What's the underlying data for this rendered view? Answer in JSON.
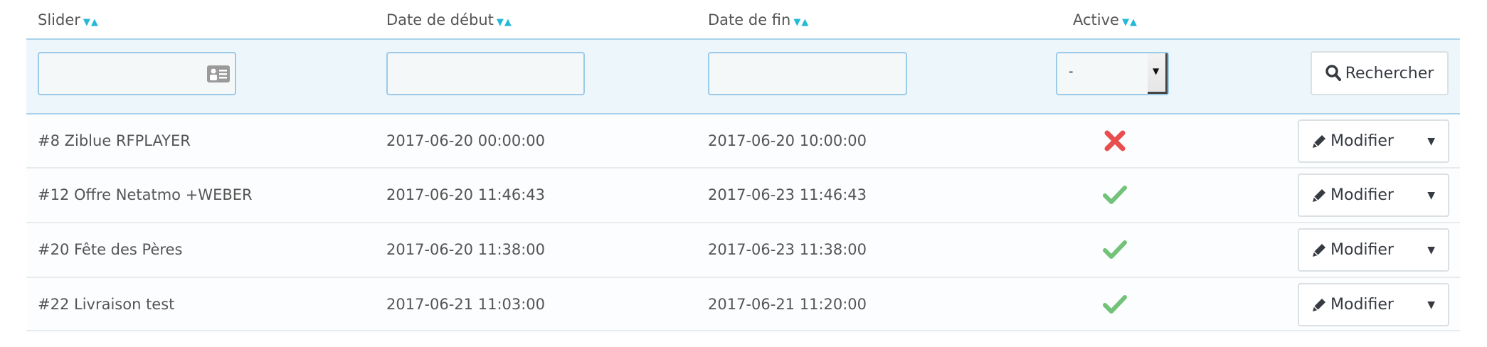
{
  "columns": [
    {
      "label": "Slider"
    },
    {
      "label": "Date de début"
    },
    {
      "label": "Date de fin"
    },
    {
      "label": "Active"
    }
  ],
  "sort_icons": {
    "desc": "▼",
    "asc": "▲"
  },
  "filters": {
    "slider": "",
    "date_debut": "",
    "date_fin": "",
    "active_selected": "-",
    "search_label": "Rechercher"
  },
  "rows": [
    {
      "slider": "#8 Ziblue RFPLAYER",
      "start": "2017-06-20 00:00:00",
      "end": "2017-06-20 10:00:00",
      "active": false,
      "action": "Modifier"
    },
    {
      "slider": "#12 Offre Netatmo +WEBER",
      "start": "2017-06-20 11:46:43",
      "end": "2017-06-23 11:46:43",
      "active": true,
      "action": "Modifier"
    },
    {
      "slider": "#20 Fête des Pères",
      "start": "2017-06-20 11:38:00",
      "end": "2017-06-23 11:38:00",
      "active": true,
      "action": "Modifier"
    },
    {
      "slider": "#22 Livraison test",
      "start": "2017-06-21 11:03:00",
      "end": "2017-06-21 11:20:00",
      "active": true,
      "action": "Modifier"
    }
  ],
  "colors": {
    "accent": "#25b9d7",
    "active_yes": "#72c279",
    "active_no": "#e84e4e",
    "filter_bg": "#edf6fb"
  }
}
